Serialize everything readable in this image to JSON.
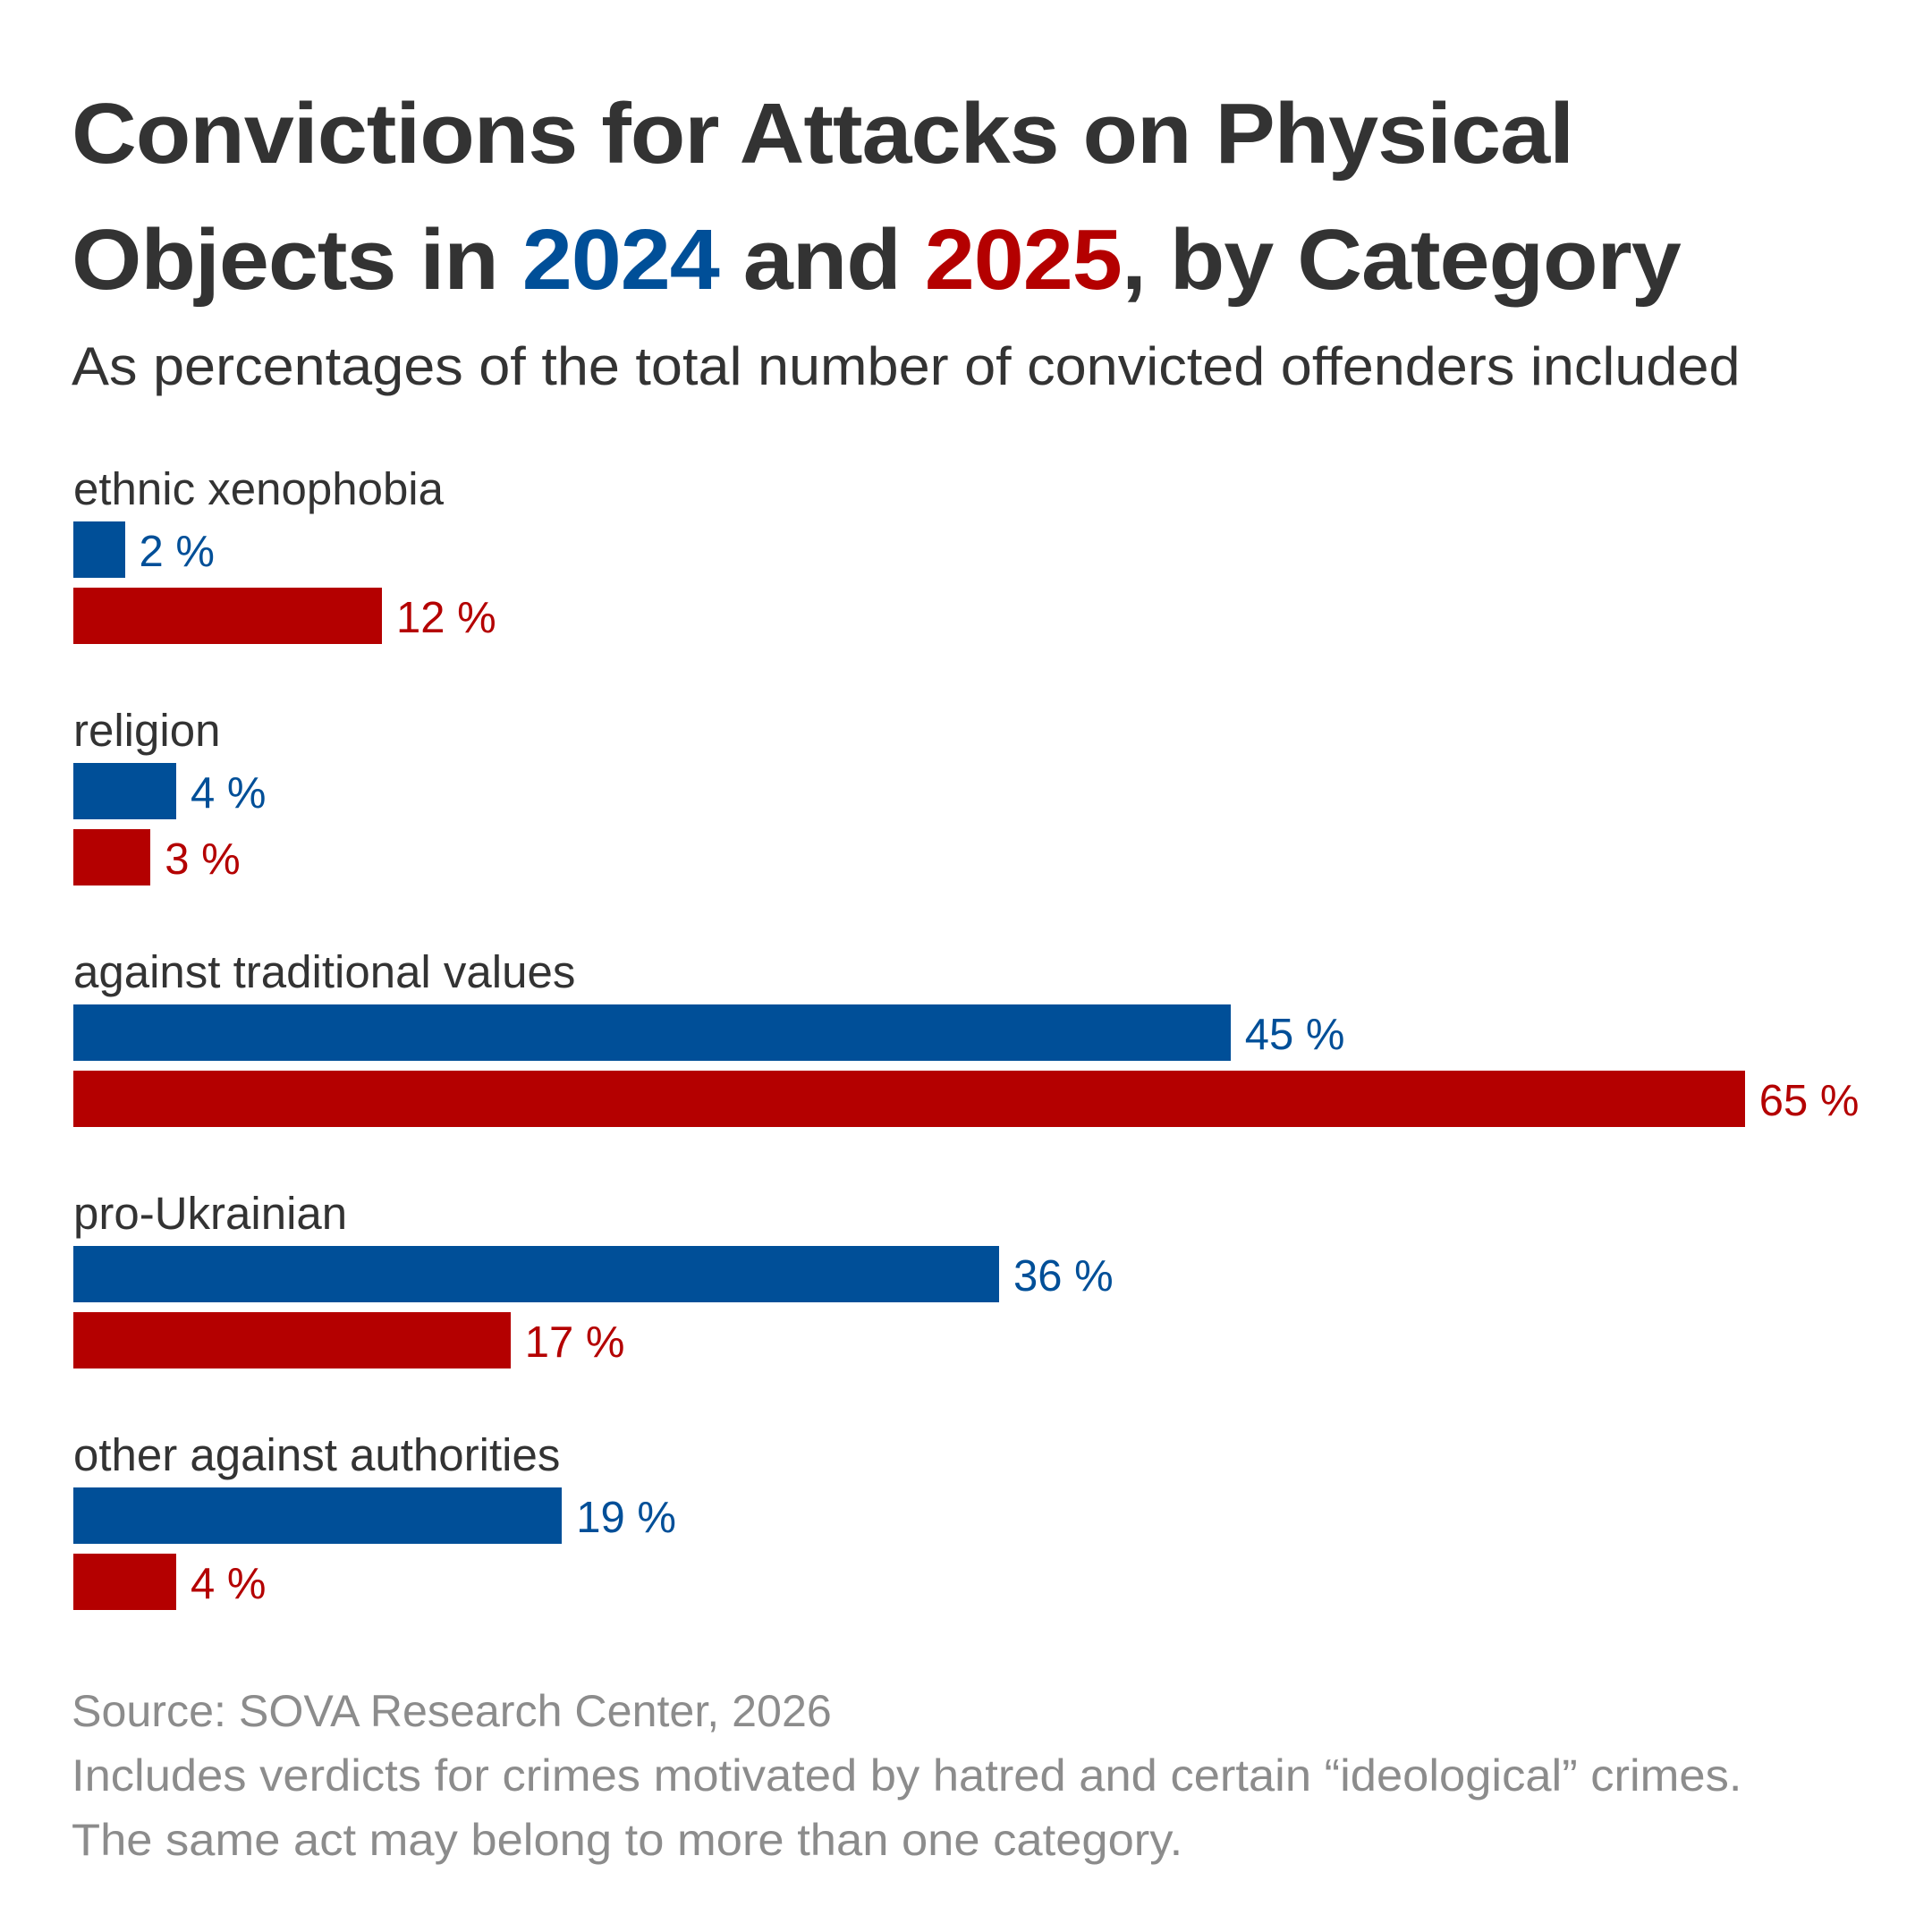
{
  "title": {
    "line1": "Convictions for Attacks on Physical",
    "line2_before": "Objects in ",
    "year_a": "2024",
    "line2_middle": " and ",
    "year_b": "2025",
    "line2_after": ", by Category"
  },
  "subtitle": "As percentages of the total number of convicted offenders included",
  "colors": {
    "series_2024": "#004f98",
    "series_2025": "#b40000",
    "text": "#333333",
    "footer": "#8c8c8c"
  },
  "chart_data": {
    "type": "bar",
    "orientation": "horizontal",
    "title": "Convictions for Attacks on Physical Objects in 2024 and 2025, by Category",
    "subtitle": "As percentages of the total number of convicted offenders included",
    "categories": [
      "ethnic xenophobia",
      "religion",
      "against traditional values",
      "pro-Ukrainian",
      "other against authorities"
    ],
    "series": [
      {
        "name": "2024",
        "color": "#004f98",
        "values": [
          2,
          4,
          45,
          36,
          19
        ],
        "labels": [
          "2 %",
          "4 %",
          "45 %",
          "36 %",
          "19 %"
        ]
      },
      {
        "name": "2025",
        "color": "#b40000",
        "values": [
          12,
          3,
          65,
          17,
          4
        ],
        "labels": [
          "12 %",
          "3 %",
          "65 %",
          "17 %",
          "4 %"
        ]
      }
    ],
    "unit": "%",
    "xlim": [
      0,
      65
    ],
    "grid": false,
    "axes_visible": false,
    "legend": "in title"
  },
  "footer": {
    "source": "Source: SOVA Research Center, 2026",
    "note1": "Includes verdicts for crimes motivated by hatred and certain “ideological” crimes.",
    "note2": "The same act may belong to more than one category."
  }
}
